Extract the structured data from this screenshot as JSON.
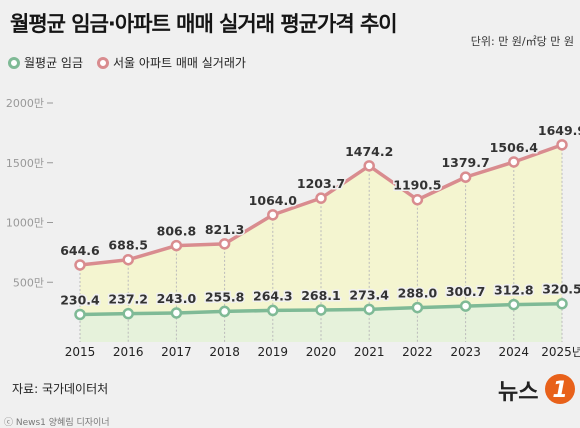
{
  "title": "월평균 임금·아파트 매매 실거래 평균가격 추이",
  "unit_label": "단위: 만 원/㎡당 만 원",
  "source": "자료: 국가데이터처",
  "copyright": "ⓒ News1 양혜림 디자이너",
  "logo_text": "뉴스1",
  "colors": {
    "wage": "#7fba96",
    "apartment": "#d98c8f",
    "area_wage": "#e4f2d8",
    "area_apartment": "#f4f5cc",
    "grid": "#bbbbbb"
  },
  "chart_data": {
    "type": "line",
    "categories": [
      "2015",
      "2016",
      "2017",
      "2018",
      "2019",
      "2020",
      "2021",
      "2022",
      "2023",
      "2024",
      "2025년"
    ],
    "ylim": [
      0,
      2000
    ],
    "yticks": [
      500,
      1000,
      1500,
      2000
    ],
    "ytick_labels": [
      "500만",
      "1000만",
      "1500만",
      "2000만"
    ],
    "grid": "vertical-dotted",
    "legend": "top-left",
    "series": [
      {
        "name": "월평균 임금",
        "color": "#7fba96",
        "values": [
          230.4,
          237.2,
          243.0,
          255.8,
          264.3,
          268.1,
          273.4,
          288.0,
          300.7,
          312.8,
          320.5
        ],
        "labels": [
          "230.4",
          "237.2",
          "243.0",
          "255.8",
          "264.3",
          "268.1",
          "273.4",
          "288.0",
          "300.7",
          "312.8",
          "320.5"
        ]
      },
      {
        "name": "서울 아파트 매매 실거래가",
        "color": "#d98c8f",
        "values": [
          644.6,
          688.5,
          806.8,
          821.3,
          1064.0,
          1203.7,
          1474.2,
          1190.5,
          1379.7,
          1506.4,
          1649.9
        ],
        "labels": [
          "644.6",
          "688.5",
          "806.8",
          "821.3",
          "1064.0",
          "1203.7",
          "1474.2",
          "1190.5",
          "1379.7",
          "1506.4",
          "1649.9"
        ]
      }
    ]
  }
}
